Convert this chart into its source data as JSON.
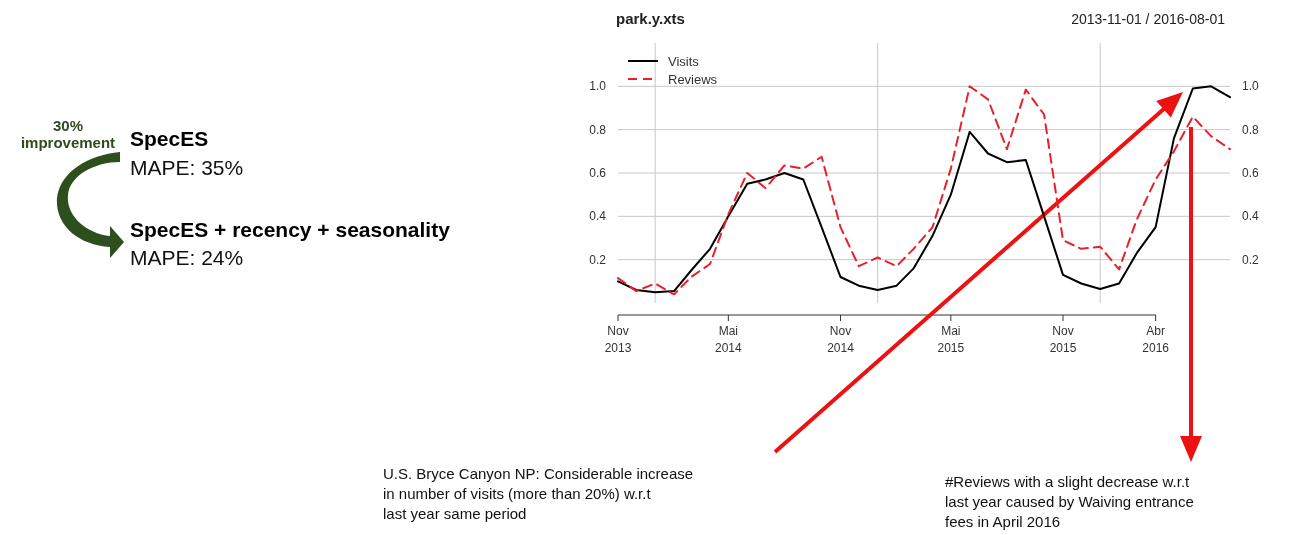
{
  "chart_data": [
    {
      "type": "other",
      "annotations": [
        "30% improvement",
        "SpecES",
        "MAPE: 35%",
        "SpecES + recency + seasonality",
        "MAPE: 24%"
      ]
    },
    {
      "type": "line",
      "title": "park.y.xts",
      "subtitle": "2013-11-01 / 2016-08-01",
      "x": [
        "2013-11",
        "2013-12",
        "2014-01",
        "2014-02",
        "2014-03",
        "2014-04",
        "2014-05",
        "2014-06",
        "2014-07",
        "2014-08",
        "2014-09",
        "2014-10",
        "2014-11",
        "2014-12",
        "2015-01",
        "2015-02",
        "2015-03",
        "2015-04",
        "2015-05",
        "2015-06",
        "2015-07",
        "2015-08",
        "2015-09",
        "2015-10",
        "2015-11",
        "2015-12",
        "2016-01",
        "2016-02",
        "2016-03",
        "2016-04",
        "2016-05",
        "2016-06",
        "2016-07",
        "2016-08"
      ],
      "series": [
        {
          "name": "Visits",
          "color": "#000000",
          "line_style": "solid",
          "values": [
            0.1,
            0.06,
            0.05,
            0.055,
            0.15,
            0.25,
            0.4,
            0.55,
            0.57,
            0.6,
            0.57,
            0.35,
            0.12,
            0.08,
            0.06,
            0.08,
            0.16,
            0.31,
            0.5,
            0.79,
            0.69,
            0.65,
            0.66,
            0.4,
            0.13,
            0.09,
            0.065,
            0.09,
            0.23,
            0.35,
            0.76,
            0.99,
            1.0,
            0.95
          ]
        },
        {
          "name": "Reviews",
          "color": "#e8202a",
          "line_style": "dashed",
          "values": [
            0.115,
            0.055,
            0.09,
            0.04,
            0.12,
            0.18,
            0.41,
            0.6,
            0.53,
            0.635,
            0.62,
            0.675,
            0.35,
            0.17,
            0.21,
            0.17,
            0.25,
            0.35,
            0.62,
            1.0,
            0.94,
            0.71,
            0.985,
            0.87,
            0.29,
            0.25,
            0.26,
            0.155,
            0.385,
            0.57,
            0.7,
            0.86,
            0.77,
            0.71
          ]
        }
      ],
      "xlim": [
        "2013-11",
        "2016-08"
      ],
      "xticks": [
        {
          "value": "2013-11",
          "label": "Nov 2013"
        },
        {
          "value": "2014-05",
          "label": "Mai 2014"
        },
        {
          "value": "2014-11",
          "label": "Nov 2014"
        },
        {
          "value": "2015-05",
          "label": "Mai 2015"
        },
        {
          "value": "2015-11",
          "label": "Nov 2015"
        },
        {
          "value": "2016-04",
          "label": "Abr 2016"
        }
      ],
      "ylim": [
        0,
        1.2
      ],
      "yticks": [
        0.2,
        0.4,
        0.6,
        0.8,
        {
          "value": 1,
          "label": "1.0"
        }
      ],
      "y2lim": [
        0,
        1.2
      ],
      "y2ticks": [
        0.2,
        0.4,
        0.6,
        0.8,
        {
          "value": 1,
          "label": "1.0"
        }
      ],
      "ref_lines": [
        {
          "axis": "x",
          "value": "2014-01",
          "color": "#c8c8c8"
        },
        {
          "axis": "x",
          "value": "2015-01",
          "color": "#c8c8c8"
        },
        {
          "axis": "x",
          "value": "2016-01",
          "color": "#c8c8c8"
        }
      ],
      "grid": "y",
      "legend": "top left",
      "annotations": [
        "U.S. Bryce Canyon NP: Considerable increase in number of visits (more than 20%) w.r.t last year same period",
        "#Reviews with a slight decrease w.r.t last year caused by Waiving entrance fees in April 2016"
      ]
    }
  ]
}
